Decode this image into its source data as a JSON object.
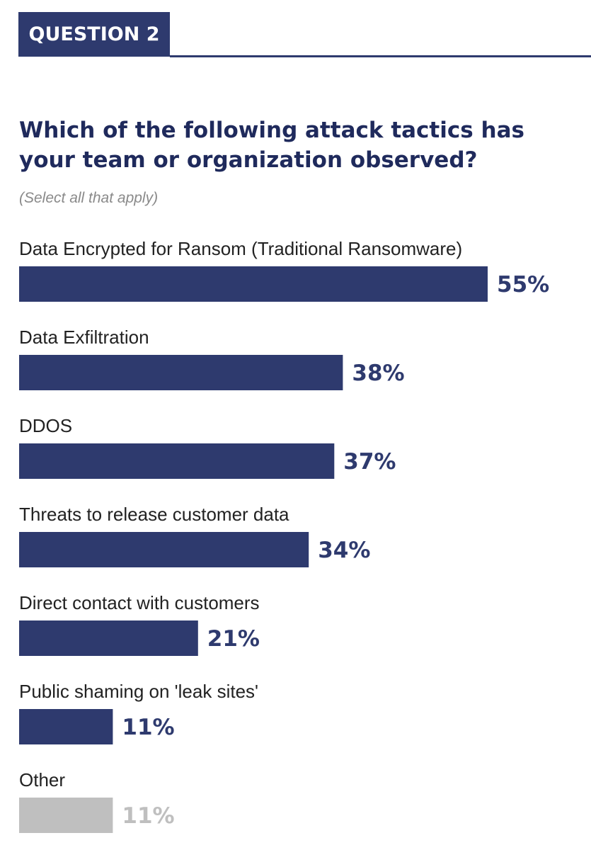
{
  "header": {
    "badge_label": "QUESTION 2"
  },
  "colors": {
    "accent": "#2e3a6e",
    "bar_primary": "#2e3a6e",
    "bar_other": "#bfbfbf",
    "value_primary": "#2e3a6e",
    "value_other": "#bfbfbf"
  },
  "chart_data": {
    "type": "bar",
    "orientation": "horizontal",
    "title": "Which of the following attack tactics has your team or organization observed?",
    "subtitle": "(Select all that apply)",
    "unit": "%",
    "categories": [
      "Data Encrypted for Ransom (Traditional Ransomware)",
      "Data Exfiltration",
      "DDOS",
      "Threats to release customer data",
      "Direct contact with customers",
      "Public shaming on 'leak sites'",
      "Other"
    ],
    "values": [
      55,
      38,
      37,
      34,
      21,
      11,
      11
    ],
    "value_labels": [
      "55%",
      "38%",
      "37%",
      "34%",
      "21%",
      "11%",
      "11%"
    ],
    "highlight": [
      "primary",
      "primary",
      "primary",
      "primary",
      "primary",
      "primary",
      "other"
    ],
    "xlim": [
      0,
      55
    ],
    "grid": false,
    "legend": "none"
  }
}
